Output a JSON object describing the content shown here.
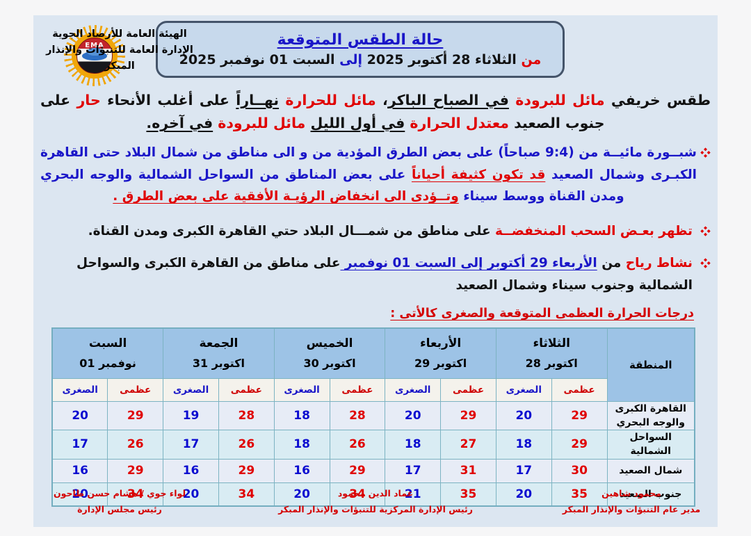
{
  "org": {
    "line1": "الهيئة العامة للأرصاد الجوية",
    "line2": "الإدارة العامة للتنبؤات والإنذار المبكر"
  },
  "logo": {
    "text": "EMA"
  },
  "header_box": {
    "title": "حالة الطقس المتوقعة",
    "subtitle_segments": [
      {
        "t": "من ",
        "s": "r"
      },
      {
        "t": "الثلاثاء 28 أكتوبر 2025 ",
        "s": "k"
      },
      {
        "t": "إلى ",
        "s": "b"
      },
      {
        "t": "السبت 01 نوفمبر 2025",
        "s": "k"
      }
    ]
  },
  "intro_segments": [
    {
      "t": "طقس خريفي ",
      "s": "k"
    },
    {
      "t": "مائل للبرودة ",
      "s": "r"
    },
    {
      "t": "في الصباح الباكر",
      "s": "ku"
    },
    {
      "t": "، ",
      "s": "k"
    },
    {
      "t": "مائل للحرارة ",
      "s": "r"
    },
    {
      "t": "نهــاراً",
      "s": "ku"
    },
    {
      "t": " على أغلب الأنحاء ",
      "s": "k"
    },
    {
      "t": "حار ",
      "s": "r"
    },
    {
      "t": "على جنوب الصعيد ",
      "s": "k"
    },
    {
      "t": "معتدل الحرارة ",
      "s": "r"
    },
    {
      "t": "في أول الليل",
      "s": "ku"
    },
    {
      "t": " ",
      "s": "k"
    },
    {
      "t": "مائل للبرودة ",
      "s": "r"
    },
    {
      "t": "في آخره.",
      "s": "ku"
    }
  ],
  "bullets": {
    "fog_segments": [
      {
        "t": "شبــورة مائيــة من (9:4 صباحاً) على بعض الطرق المؤدية من و الى مناطق من  شمال البلاد حتى القاهرة الكبـرى وشمال الصعيد ",
        "s": "b"
      },
      {
        "t": "قد تكون كثيفة أحياناً",
        "s": "ru"
      },
      {
        "t": " على بعض المناطق من السواحل الشمالية والوجه البحري ومدن القناة ووسط سيناء ",
        "s": "b"
      },
      {
        "t": "وتــؤدى الى انخفاض الرؤيـة الأفقية على بعض الطرق .",
        "s": "ru"
      }
    ],
    "clouds_segments": [
      {
        "t": "تظهر بعـض السحب المنخفضــة ",
        "s": "r"
      },
      {
        "t": "على مناطق من شمـــال البلاد حتي القاهرة الكبرى ومدن القناة.",
        "s": "k"
      }
    ],
    "wind_segments": [
      {
        "t": "نشاط رياح ",
        "s": "r"
      },
      {
        "t": "من ",
        "s": "k"
      },
      {
        "t": "الأربعاء 29 أكتوبر إلى السبت 01 نوفمبر ",
        "s": "bu"
      },
      {
        "t": "على مناطق من القاهرة الكبرى والسواحل الشمالية وجنوب سيناء وشمال الصعيد",
        "s": "k"
      }
    ]
  },
  "table_title": "درجات الحرارة العظمى المتوقعة والصغرى كالأتى :",
  "table": {
    "region_header": "المنطقة",
    "max_label": "عظمى",
    "min_label": "الصغرى",
    "days": [
      {
        "name": "الثلاثاء",
        "date": "28 اكتوبر"
      },
      {
        "name": "الأربعاء",
        "date": "29 اكتوبر"
      },
      {
        "name": "الخميس",
        "date": "30 اكتوبر"
      },
      {
        "name": "الجمعة",
        "date": "31 اكتوبر"
      },
      {
        "name": "السبت",
        "date": "01 نوفمبر"
      }
    ],
    "rows": [
      {
        "region": "القاهرة الكبرى والوجه البحري",
        "temps": [
          {
            "max": 29,
            "min": 20
          },
          {
            "max": 29,
            "min": 20
          },
          {
            "max": 28,
            "min": 18
          },
          {
            "max": 28,
            "min": 19
          },
          {
            "max": 29,
            "min": 20
          }
        ]
      },
      {
        "region": "السواحل الشمالية",
        "temps": [
          {
            "max": 29,
            "min": 18
          },
          {
            "max": 27,
            "min": 18
          },
          {
            "max": 26,
            "min": 18
          },
          {
            "max": 26,
            "min": 17
          },
          {
            "max": 26,
            "min": 17
          }
        ]
      },
      {
        "region": "شمال الصعيد",
        "temps": [
          {
            "max": 30,
            "min": 17
          },
          {
            "max": 31,
            "min": 17
          },
          {
            "max": 29,
            "min": 16
          },
          {
            "max": 29,
            "min": 16
          },
          {
            "max": 29,
            "min": 16
          }
        ]
      },
      {
        "region": "جنوب الصعيد",
        "temps": [
          {
            "max": 35,
            "min": 20
          },
          {
            "max": 35,
            "min": 21
          },
          {
            "max": 34,
            "min": 20
          },
          {
            "max": 34,
            "min": 20
          },
          {
            "max": 34,
            "min": 20
          }
        ]
      }
    ]
  },
  "signatures": [
    {
      "name": "محمود شاهين",
      "title": "مدير عام التنبؤات والإنذار المبكر"
    },
    {
      "name": "عماد الدين محمود",
      "title": "رئيس الإدارة المركزية للتنبؤات والإنذار المبكر"
    },
    {
      "name": "لواء جوي / هشام حسن طاحون",
      "title": "رئيس مجلس الإدارة"
    }
  ],
  "colors": {
    "accent_red": "#e00000",
    "accent_blue": "#1a16c8",
    "min_blue": "#0b0bd0",
    "doc_bg": "#dce6f1",
    "header_box_bg": "#c7d9ec",
    "header_box_border": "#44546a",
    "table_header_bg": "#9dc3e6",
    "table_border": "#7cb3c2",
    "row_odd_bg": "#e7ecf6",
    "row_even_bg": "#d9ecf3",
    "subheader_bg": "#f4f2ec"
  }
}
